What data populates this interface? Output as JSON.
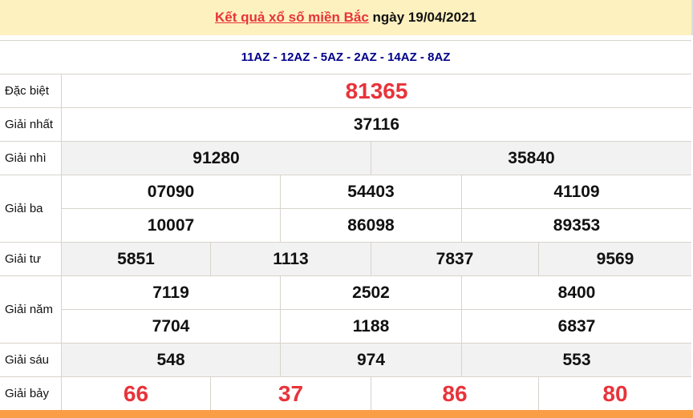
{
  "header": {
    "title_link": "Kết quả xổ số miền Bắc",
    "date_text": " ngày 19/04/2021"
  },
  "codes": "11AZ - 12AZ - 5AZ - 2AZ - 14AZ - 8AZ",
  "prizes": [
    {
      "label": "Đặc biệt",
      "numbers": [
        "81365"
      ]
    },
    {
      "label": "Giải nhất",
      "numbers": [
        "37116"
      ]
    },
    {
      "label": "Giải nhì",
      "numbers": [
        "91280",
        "35840"
      ]
    },
    {
      "label": "Giải ba",
      "numbers": [
        "07090",
        "54403",
        "41109",
        "10007",
        "86098",
        "89353"
      ]
    },
    {
      "label": "Giải tư",
      "numbers": [
        "5851",
        "1113",
        "7837",
        "9569"
      ]
    },
    {
      "label": "Giải năm",
      "numbers": [
        "7119",
        "2502",
        "8400",
        "7704",
        "1188",
        "6837"
      ]
    },
    {
      "label": "Giải sáu",
      "numbers": [
        "548",
        "974",
        "553"
      ]
    },
    {
      "label": "Giải bảy",
      "numbers": [
        "66",
        "37",
        "86",
        "80"
      ]
    }
  ],
  "colors": {
    "header_bg": "#fdf1c0",
    "accent_red": "#e8333a",
    "code_blue": "#00008b",
    "footer_orange": "#f99d47",
    "alt_row": "#f2f2f2"
  }
}
